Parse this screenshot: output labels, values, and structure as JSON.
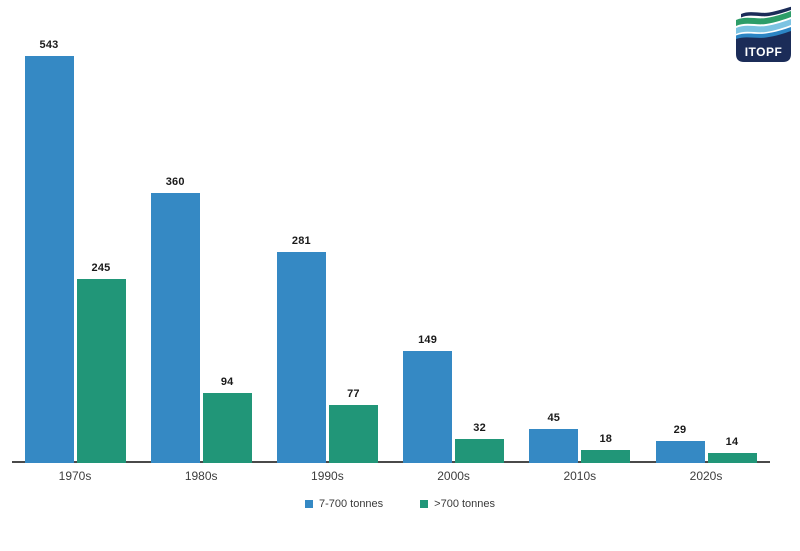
{
  "logo": {
    "text": "ITOPF"
  },
  "chart_data": {
    "type": "bar",
    "categories": [
      "1970s",
      "1980s",
      "1990s",
      "2000s",
      "2010s",
      "2020s"
    ],
    "series": [
      {
        "name": "7-700 tonnes",
        "color": "#3589C4",
        "values": [
          543,
          360,
          281,
          149,
          45,
          29
        ]
      },
      {
        "name": ">700 tonnes",
        "color": "#219678",
        "values": [
          245,
          94,
          77,
          32,
          18,
          14
        ]
      }
    ],
    "title": "",
    "xlabel": "",
    "ylabel": "",
    "ylim": [
      0,
      580
    ],
    "grid": false,
    "legend_position": "bottom",
    "value_labels_shown": true
  },
  "colors": {
    "bar_blue": "#3589C4",
    "bar_green": "#219678",
    "axis_line": "#4a4a4a",
    "value_label": "#1a1a1a",
    "category_label": "#3d3d3d",
    "logo_navy": "#1B2C58",
    "logo_green": "#2D9D68",
    "logo_light_blue": "#7CC3E2",
    "logo_mid_blue": "#2C85C4",
    "background": "#FFFFFF"
  }
}
